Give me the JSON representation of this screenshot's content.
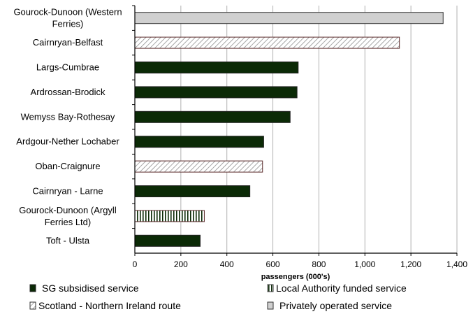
{
  "chart_data": {
    "type": "bar",
    "orientation": "horizontal",
    "title": "",
    "xlabel": "passengers (000's)",
    "ylabel": "",
    "xlim": [
      0,
      1400
    ],
    "xticks": [
      "0",
      "200",
      "400",
      "600",
      "800",
      "1,000",
      "1,200",
      "1,400"
    ],
    "grid": true,
    "categories": [
      [
        "Gourock-Dunoon (Western",
        "Ferries)"
      ],
      [
        "Cairnryan-Belfast"
      ],
      [
        "Largs-Cumbrae"
      ],
      [
        "Ardrossan-Brodick"
      ],
      [
        "Wemyss Bay-Rothesay"
      ],
      [
        "Ardgour-Nether Lochaber"
      ],
      [
        "Oban-Craignure"
      ],
      [
        "Cairnryan - Larne"
      ],
      [
        "Gourock-Dunoon (Argyll",
        "Ferries Ltd)"
      ],
      [
        "Toft - Ulsta"
      ]
    ],
    "values": [
      1340,
      1150,
      710,
      705,
      675,
      560,
      555,
      500,
      302,
      284
    ],
    "types": [
      "private",
      "ni",
      "sg",
      "sg",
      "sg",
      "sg",
      "ni",
      "sg",
      "la",
      "sg"
    ],
    "legend": [
      {
        "key": "sg",
        "label": "SG subsidised service"
      },
      {
        "key": "la",
        "label": "Local Authority funded service"
      },
      {
        "key": "ni",
        "label": "Scotland - Northern Ireland route"
      },
      {
        "key": "private",
        "label": "Privately operated service"
      }
    ],
    "legend_position": "bottom",
    "colors": {
      "sg": "#0b2a06",
      "private": "#d0d0d0",
      "grid": "#b0b0b0"
    }
  }
}
